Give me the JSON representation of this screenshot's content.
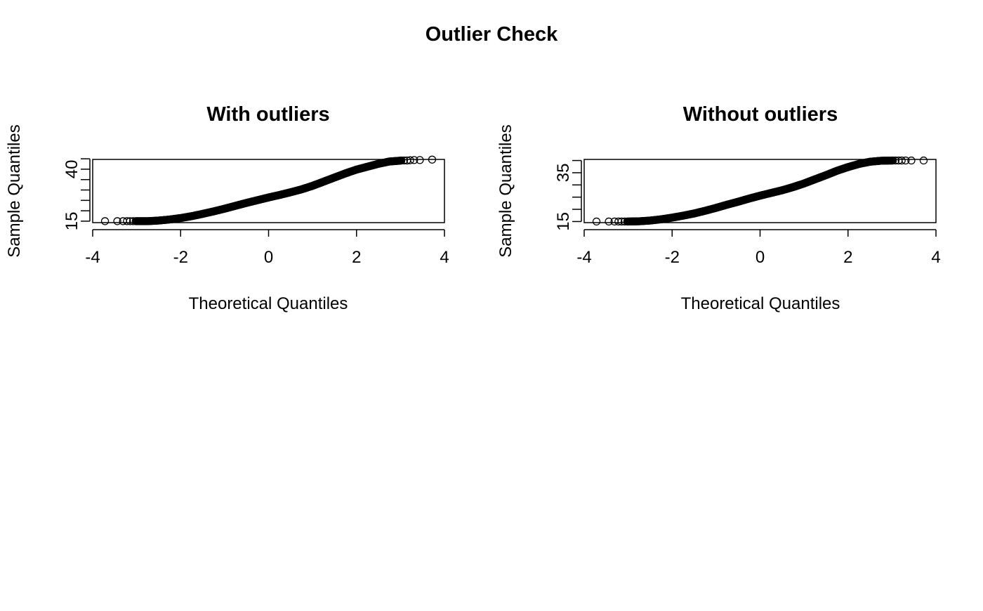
{
  "figure_title": "Outlier Check",
  "chart_data": [
    {
      "type": "scatter",
      "subtype": "normal-qq-plot",
      "title": "With outliers",
      "xlabel": "Theoretical Quantiles",
      "ylabel": "Sample Quantiles",
      "xlim": [
        -4,
        4
      ],
      "ylim": [
        14.3,
        44.7
      ],
      "x_ticks": [
        -4,
        -2,
        0,
        2,
        4
      ],
      "x_tick_labels": [
        "-4",
        "-2",
        "0",
        "2",
        "4"
      ],
      "y_ticks": [
        15,
        20,
        25,
        30,
        35,
        40,
        45
      ],
      "y_tick_labels": [
        "15",
        "",
        "",
        "",
        "",
        "40",
        ""
      ],
      "grid": false,
      "points": {
        "tail_low": [
          [
            -3.72,
            15.0
          ],
          [
            -3.44,
            15.0
          ],
          [
            -3.31,
            15.0
          ],
          [
            -3.22,
            15.0
          ],
          [
            -3.15,
            15.0
          ],
          [
            -3.08,
            15.0
          ],
          [
            -3.02,
            15.0
          ]
        ],
        "tail_high": [
          [
            3.02,
            44.2
          ],
          [
            3.08,
            44.2
          ],
          [
            3.15,
            44.2
          ],
          [
            3.22,
            44.3
          ],
          [
            3.31,
            44.4
          ],
          [
            3.44,
            44.4
          ],
          [
            3.72,
            44.6
          ]
        ],
        "body": [
          [
            -3.0,
            15.0
          ],
          [
            -2.75,
            15.0
          ],
          [
            -2.5,
            15.3
          ],
          [
            -2.25,
            15.8
          ],
          [
            -2.0,
            16.5
          ],
          [
            -1.75,
            17.4
          ],
          [
            -1.5,
            18.5
          ],
          [
            -1.25,
            19.7
          ],
          [
            -1.0,
            21.0
          ],
          [
            -0.75,
            22.4
          ],
          [
            -0.5,
            23.8
          ],
          [
            -0.25,
            25.1
          ],
          [
            0.0,
            26.4
          ],
          [
            0.25,
            27.6
          ],
          [
            0.5,
            28.9
          ],
          [
            0.75,
            30.3
          ],
          [
            1.0,
            32.0
          ],
          [
            1.25,
            34.0
          ],
          [
            1.5,
            36.0
          ],
          [
            1.75,
            38.0
          ],
          [
            2.0,
            39.8
          ],
          [
            2.25,
            41.2
          ],
          [
            2.5,
            42.6
          ],
          [
            2.75,
            43.7
          ],
          [
            3.0,
            44.1
          ]
        ]
      }
    },
    {
      "type": "scatter",
      "subtype": "normal-qq-plot",
      "title": "Without outliers",
      "xlabel": "Theoretical Quantiles",
      "ylabel": "Sample Quantiles",
      "xlim": [
        -4,
        4
      ],
      "ylim": [
        14.55,
        40.45
      ],
      "x_ticks": [
        -4,
        -2,
        0,
        2,
        4
      ],
      "x_tick_labels": [
        "-4",
        "-2",
        "0",
        "2",
        "4"
      ],
      "y_ticks": [
        15,
        20,
        25,
        30,
        35,
        40
      ],
      "y_tick_labels": [
        "15",
        "",
        "",
        "",
        "35",
        ""
      ],
      "grid": false,
      "points": {
        "tail_low": [
          [
            -3.72,
            15.0
          ],
          [
            -3.44,
            15.0
          ],
          [
            -3.31,
            15.0
          ],
          [
            -3.22,
            15.0
          ],
          [
            -3.15,
            15.0
          ],
          [
            -3.08,
            15.0
          ],
          [
            -3.02,
            15.0
          ]
        ],
        "tail_high": [
          [
            3.02,
            40.0
          ],
          [
            3.08,
            40.0
          ],
          [
            3.15,
            40.0
          ],
          [
            3.22,
            40.0
          ],
          [
            3.31,
            40.0
          ],
          [
            3.44,
            40.0
          ],
          [
            3.72,
            40.0
          ]
        ],
        "body": [
          [
            -3.0,
            15.0
          ],
          [
            -2.75,
            15.1
          ],
          [
            -2.5,
            15.4
          ],
          [
            -2.25,
            15.9
          ],
          [
            -2.0,
            16.6
          ],
          [
            -1.75,
            17.4
          ],
          [
            -1.5,
            18.3
          ],
          [
            -1.25,
            19.4
          ],
          [
            -1.0,
            20.6
          ],
          [
            -0.75,
            21.9
          ],
          [
            -0.5,
            23.1
          ],
          [
            -0.25,
            24.4
          ],
          [
            0.0,
            25.6
          ],
          [
            0.25,
            26.7
          ],
          [
            0.5,
            27.8
          ],
          [
            0.75,
            29.1
          ],
          [
            1.0,
            30.6
          ],
          [
            1.25,
            32.3
          ],
          [
            1.5,
            34.0
          ],
          [
            1.75,
            35.8
          ],
          [
            2.0,
            37.3
          ],
          [
            2.25,
            38.6
          ],
          [
            2.5,
            39.5
          ],
          [
            2.75,
            39.9
          ],
          [
            3.0,
            40.0
          ]
        ]
      }
    }
  ]
}
